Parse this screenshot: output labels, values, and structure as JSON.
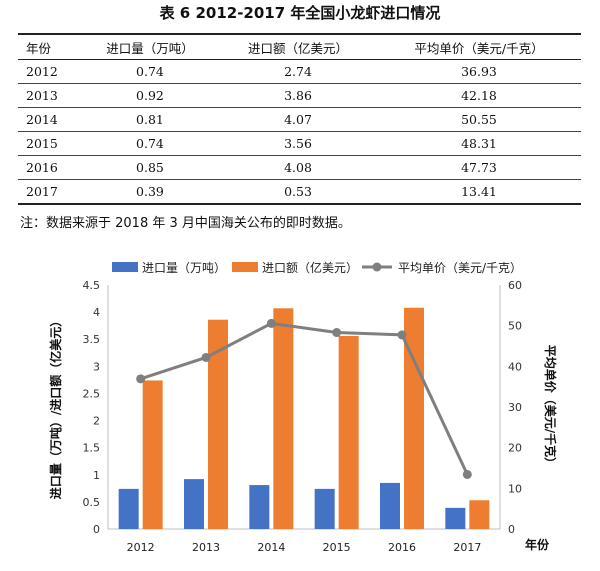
{
  "title": "表 6 2012-2017 年全国小龙虾进口情况",
  "table": {
    "headers": [
      "年份",
      "进口量（万吨）",
      "进口额（亿美元）",
      "平均单价（美元/千克）"
    ],
    "rows": [
      [
        "2012",
        "0.74",
        "2.74",
        "36.93"
      ],
      [
        "2013",
        "0.92",
        "3.86",
        "42.18"
      ],
      [
        "2014",
        "0.81",
        "4.07",
        "50.55"
      ],
      [
        "2015",
        "0.74",
        "3.56",
        "48.31"
      ],
      [
        "2016",
        "0.85",
        "4.08",
        "47.73"
      ],
      [
        "2017",
        "0.39",
        "0.53",
        "13.41"
      ]
    ]
  },
  "note": "注：数据来源于 2018 年 3 月中国海关公布的即时数据。",
  "colors": {
    "volume": "#4472C4",
    "value": "#ED7D31",
    "price": "#7F7F7F"
  },
  "chart_data": {
    "type": "bar",
    "categories": [
      "2012",
      "2013",
      "2014",
      "2015",
      "2016",
      "2017"
    ],
    "series": [
      {
        "name": "进口量（万吨）",
        "kind": "bar",
        "axis": "left",
        "values": [
          0.74,
          0.92,
          0.81,
          0.74,
          0.85,
          0.39
        ]
      },
      {
        "name": "进口额（亿美元）",
        "kind": "bar",
        "axis": "left",
        "values": [
          2.74,
          3.86,
          4.07,
          3.56,
          4.08,
          0.53
        ]
      },
      {
        "name": "平均单价（美元/千克）",
        "kind": "line",
        "axis": "right",
        "values": [
          36.93,
          42.18,
          50.55,
          48.31,
          47.73,
          13.41
        ]
      }
    ],
    "ylabel": "进口量（万吨）/进口额（亿美元）",
    "y2label": "平均单价（美元/千克）",
    "xlabel": "年份",
    "ylim": [
      0,
      4.5
    ],
    "y2lim": [
      0,
      60
    ],
    "yticks": [
      "0",
      "0.5",
      "1",
      "1.5",
      "2",
      "2.5",
      "3",
      "3.5",
      "4",
      "4.5"
    ],
    "y2ticks": [
      "0",
      "10",
      "20",
      "30",
      "40",
      "50",
      "60"
    ],
    "legend": "top"
  }
}
